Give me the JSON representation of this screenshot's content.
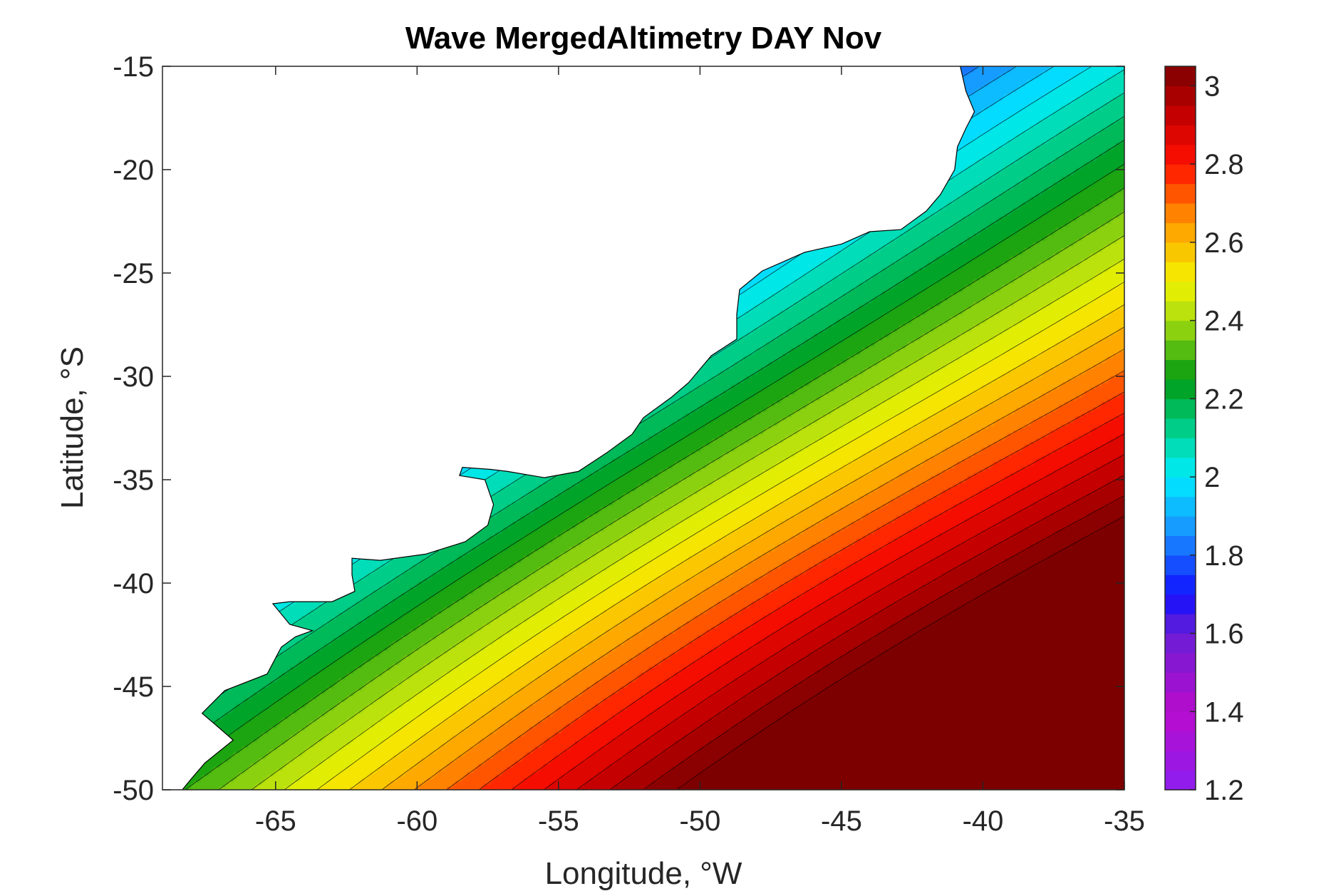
{
  "figure": {
    "title": "Wave MergedAltimetry DAY Nov",
    "xlabel": "Longitude, °W",
    "ylabel": "Latitude, °S",
    "x_ticks": [
      {
        "value": -65,
        "label": "-65"
      },
      {
        "value": -60,
        "label": "-60"
      },
      {
        "value": -55,
        "label": "-55"
      },
      {
        "value": -50,
        "label": "-50"
      },
      {
        "value": -45,
        "label": "-45"
      },
      {
        "value": -40,
        "label": "-40"
      },
      {
        "value": -35,
        "label": "-35"
      }
    ],
    "y_ticks": [
      {
        "value": -15,
        "label": "-15"
      },
      {
        "value": -20,
        "label": "-20"
      },
      {
        "value": -25,
        "label": "-25"
      },
      {
        "value": -30,
        "label": "-30"
      },
      {
        "value": -35,
        "label": "-35"
      },
      {
        "value": -40,
        "label": "-40"
      },
      {
        "value": -45,
        "label": "-45"
      },
      {
        "value": -50,
        "label": "-50"
      }
    ],
    "xlim": [
      -69,
      -35
    ],
    "ylim": [
      -50,
      -15
    ],
    "colorbar": {
      "range": [
        1.2,
        3.05
      ],
      "ticks": [
        {
          "value": 1.2,
          "label": "1.2"
        },
        {
          "value": 1.4,
          "label": "1.4"
        },
        {
          "value": 1.6,
          "label": "1.6"
        },
        {
          "value": 1.8,
          "label": "1.8"
        },
        {
          "value": 2.0,
          "label": "2"
        },
        {
          "value": 2.2,
          "label": "2.2"
        },
        {
          "value": 2.4,
          "label": "2.4"
        },
        {
          "value": 2.6,
          "label": "2.6"
        },
        {
          "value": 2.8,
          "label": "2.8"
        },
        {
          "value": 3.0,
          "label": "3"
        }
      ],
      "colormap": [
        {
          "value": 1.2,
          "color": "#8c1ef0"
        },
        {
          "value": 1.4,
          "color": "#b90ccc"
        },
        {
          "value": 1.6,
          "color": "#6a1ed6"
        },
        {
          "value": 1.7,
          "color": "#1010ff"
        },
        {
          "value": 1.85,
          "color": "#1a8cff"
        },
        {
          "value": 2.0,
          "color": "#00ecff"
        },
        {
          "value": 2.1,
          "color": "#00d8a0"
        },
        {
          "value": 2.25,
          "color": "#009a10"
        },
        {
          "value": 2.4,
          "color": "#a8dc10"
        },
        {
          "value": 2.5,
          "color": "#f4f400"
        },
        {
          "value": 2.65,
          "color": "#ff9a00"
        },
        {
          "value": 2.8,
          "color": "#ff1000"
        },
        {
          "value": 2.92,
          "color": "#c80000"
        },
        {
          "value": 3.05,
          "color": "#7d0000"
        }
      ]
    },
    "land_color": "#ffffff"
  }
}
